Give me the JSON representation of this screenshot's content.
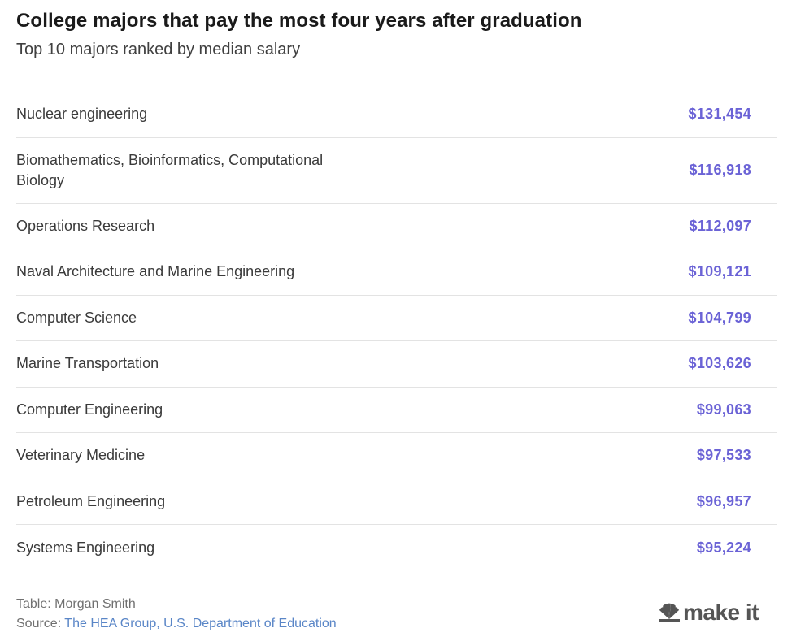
{
  "header": {
    "title": "College majors that pay the most four years after graduation",
    "subtitle": "Top 10 majors ranked by median salary"
  },
  "chart_data": {
    "type": "table",
    "title": "College majors that pay the most four years after graduation",
    "subtitle": "Top 10 majors ranked by median salary",
    "rows": [
      {
        "major": "Nuclear engineering",
        "salary": "$131,454",
        "value": 131454
      },
      {
        "major": "Biomathematics, Bioinformatics, Computational Biology",
        "salary": "$116,918",
        "value": 116918
      },
      {
        "major": "Operations Research",
        "salary": "$112,097",
        "value": 112097
      },
      {
        "major": "Naval Architecture and Marine Engineering",
        "salary": "$109,121",
        "value": 109121
      },
      {
        "major": "Computer Science",
        "salary": "$104,799",
        "value": 104799
      },
      {
        "major": "Marine Transportation",
        "salary": "$103,626",
        "value": 103626
      },
      {
        "major": "Computer Engineering",
        "salary": "$99,063",
        "value": 99063
      },
      {
        "major": "Veterinary Medicine",
        "salary": "$97,533",
        "value": 97533
      },
      {
        "major": "Petroleum Engineering",
        "salary": "$96,957",
        "value": 96957
      },
      {
        "major": "Systems Engineering",
        "salary": "$95,224",
        "value": 95224
      }
    ]
  },
  "footer": {
    "credit": "Table: Morgan Smith",
    "source_prefix": "Source: ",
    "source_link": "The HEA Group, U.S. Department of Education"
  },
  "logo": {
    "text": "make it",
    "icon": "nbc-peacock-icon"
  },
  "colors": {
    "salary": "#6b63d6",
    "link": "#5a86c7"
  }
}
